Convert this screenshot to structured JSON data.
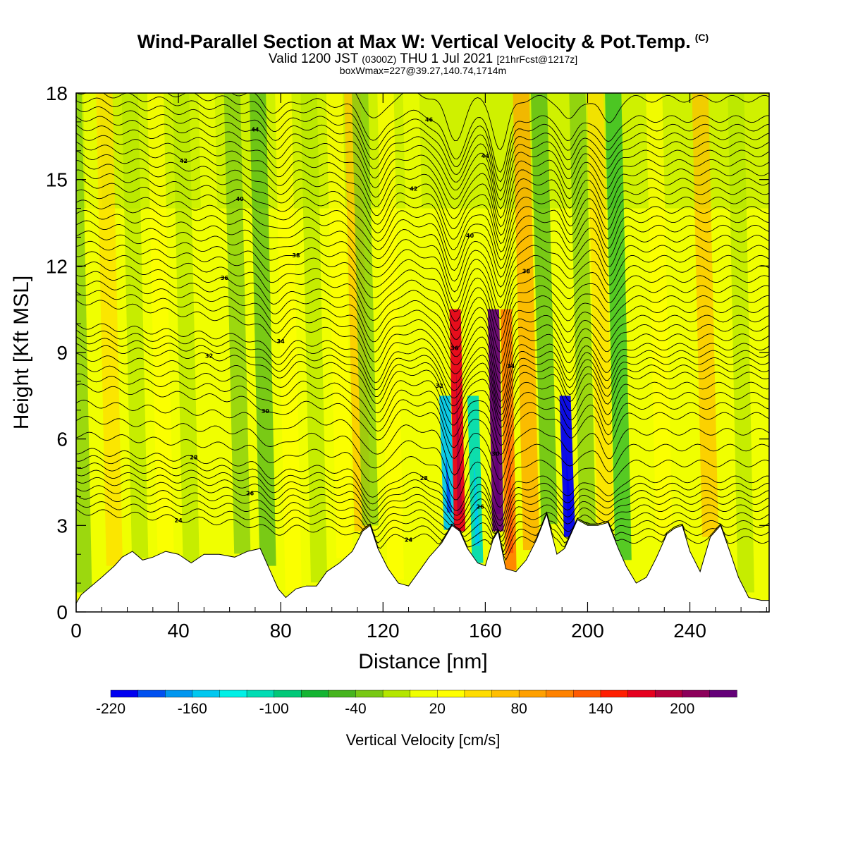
{
  "header": {
    "title": "Wind-Parallel Section at Max W: Vertical Velocity & Pot.Temp.",
    "copyright": "(C)",
    "valid_prefix": "Valid 1200 JST",
    "valid_utc": "(0300Z)",
    "valid_date": "THU 1 Jul 2021",
    "forecast": "[21hrFcst@1217z]",
    "boxwmax": "boxWmax=227@39.27,140.74,1714m"
  },
  "chart_data": {
    "type": "heatmap",
    "title": "Wind-Parallel Section at Max W: Vertical Velocity & Pot.Temp.",
    "xlabel": "Distance [nm]",
    "ylabel": "Height [Kft MSL]",
    "xlim": [
      0,
      271
    ],
    "ylim": [
      0,
      18
    ],
    "x_ticks": [
      0,
      40,
      80,
      120,
      160,
      200,
      240
    ],
    "y_ticks": [
      0,
      3,
      6,
      9,
      12,
      15,
      18
    ],
    "colorbar": {
      "title": "Vertical Velocity [cm/s]",
      "bins": [
        -220,
        -200,
        -180,
        -160,
        -140,
        -120,
        -100,
        -80,
        -60,
        -40,
        -20,
        0,
        20,
        40,
        60,
        80,
        100,
        120,
        140,
        160,
        180,
        200,
        220,
        240
      ],
      "tick_labels": [
        "-220",
        "-160",
        "-100",
        "-40",
        "20",
        "80",
        "140",
        "200"
      ],
      "colors": [
        "#0000f0",
        "#0050f0",
        "#0096f0",
        "#00c8f0",
        "#00f0e6",
        "#00dcb4",
        "#00c878",
        "#14b432",
        "#46b41e",
        "#78c814",
        "#b4e600",
        "#f0ff00",
        "#ffff00",
        "#ffdc00",
        "#ffbe00",
        "#ffa000",
        "#ff8200",
        "#ff5a00",
        "#ff1e00",
        "#e6001e",
        "#b4003c",
        "#8c005a",
        "#640078"
      ]
    },
    "columns": [
      {
        "x": 3,
        "w": -30
      },
      {
        "x": 10,
        "w": 10
      },
      {
        "x": 15,
        "w": 40
      },
      {
        "x": 25,
        "w": -10
      },
      {
        "x": 35,
        "w": 20
      },
      {
        "x": 45,
        "w": -20
      },
      {
        "x": 55,
        "w": 10
      },
      {
        "x": 65,
        "w": -30
      },
      {
        "x": 75,
        "w": -60
      },
      {
        "x": 85,
        "w": 20
      },
      {
        "x": 95,
        "w": -10
      },
      {
        "x": 105,
        "w": 20
      },
      {
        "x": 112,
        "w": 60
      },
      {
        "x": 115,
        "w": -40
      },
      {
        "x": 125,
        "w": 30
      },
      {
        "x": 135,
        "w": 10
      },
      {
        "x": 146,
        "w": -150
      },
      {
        "x": 150,
        "w": 170
      },
      {
        "x": 157,
        "w": -120
      },
      {
        "x": 165,
        "w": 227
      },
      {
        "x": 170,
        "w": 100
      },
      {
        "x": 178,
        "w": 80
      },
      {
        "x": 185,
        "w": -60
      },
      {
        "x": 193,
        "w": -210
      },
      {
        "x": 200,
        "w": -30
      },
      {
        "x": 207,
        "w": 40
      },
      {
        "x": 214,
        "w": -70
      },
      {
        "x": 230,
        "w": 30
      },
      {
        "x": 248,
        "w": 60
      },
      {
        "x": 262,
        "w": -20
      }
    ],
    "terrain": [
      [
        0,
        0.3
      ],
      [
        2,
        0.6
      ],
      [
        6,
        0.9
      ],
      [
        10,
        1.2
      ],
      [
        15,
        1.6
      ],
      [
        18,
        1.9
      ],
      [
        22,
        2.1
      ],
      [
        26,
        1.8
      ],
      [
        30,
        1.9
      ],
      [
        35,
        2.1
      ],
      [
        40,
        2.0
      ],
      [
        45,
        1.7
      ],
      [
        50,
        2.0
      ],
      [
        56,
        2.0
      ],
      [
        62,
        1.9
      ],
      [
        67,
        2.1
      ],
      [
        72,
        2.2
      ],
      [
        76,
        1.4
      ],
      [
        79,
        0.8
      ],
      [
        82,
        0.5
      ],
      [
        86,
        0.8
      ],
      [
        90,
        0.9
      ],
      [
        94,
        0.9
      ],
      [
        98,
        1.4
      ],
      [
        103,
        1.7
      ],
      [
        108,
        2.1
      ],
      [
        112,
        2.8
      ],
      [
        115,
        3.0
      ],
      [
        118,
        2.2
      ],
      [
        122,
        1.5
      ],
      [
        126,
        1.0
      ],
      [
        130,
        0.9
      ],
      [
        134,
        1.4
      ],
      [
        138,
        1.9
      ],
      [
        143,
        2.4
      ],
      [
        147,
        3.0
      ],
      [
        150,
        2.8
      ],
      [
        153,
        2.2
      ],
      [
        157,
        1.7
      ],
      [
        160,
        1.6
      ],
      [
        163,
        2.5
      ],
      [
        165,
        2.8
      ],
      [
        168,
        1.5
      ],
      [
        172,
        1.4
      ],
      [
        176,
        1.8
      ],
      [
        180,
        2.5
      ],
      [
        184,
        3.4
      ],
      [
        188,
        2.0
      ],
      [
        191,
        2.2
      ],
      [
        196,
        3.2
      ],
      [
        200,
        3.0
      ],
      [
        204,
        3.0
      ],
      [
        208,
        3.1
      ],
      [
        212,
        2.2
      ],
      [
        215,
        1.6
      ],
      [
        219,
        1.0
      ],
      [
        223,
        1.2
      ],
      [
        227,
        1.9
      ],
      [
        231,
        2.7
      ],
      [
        234,
        2.9
      ],
      [
        237,
        3.0
      ],
      [
        240,
        2.1
      ],
      [
        244,
        1.4
      ],
      [
        248,
        2.6
      ],
      [
        252,
        3.0
      ],
      [
        256,
        2.0
      ],
      [
        259,
        1.2
      ],
      [
        263,
        0.5
      ],
      [
        268,
        0.4
      ],
      [
        271,
        0.4
      ]
    ],
    "theta_contours": [
      {
        "label": "24",
        "base": 2.5
      },
      {
        "label": "26",
        "base": 3.6
      },
      {
        "label": "28",
        "base": 4.6
      },
      {
        "label": "30",
        "base": 6.8
      },
      {
        "label": "32",
        "base": 8.2
      },
      {
        "label": "34",
        "base": 9.2
      },
      {
        "label": "36",
        "base": 10.5
      },
      {
        "label": "38",
        "base": 11.9
      },
      {
        "label": "40",
        "base": 13.3
      },
      {
        "label": "42",
        "base": 14.6
      },
      {
        "label": "44",
        "base": 15.9
      },
      {
        "label": "46",
        "base": 17.1
      }
    ]
  },
  "colorbar_labels": [
    "-220",
    "-160",
    "-100",
    "-40",
    "20",
    "80",
    "140",
    "200"
  ]
}
